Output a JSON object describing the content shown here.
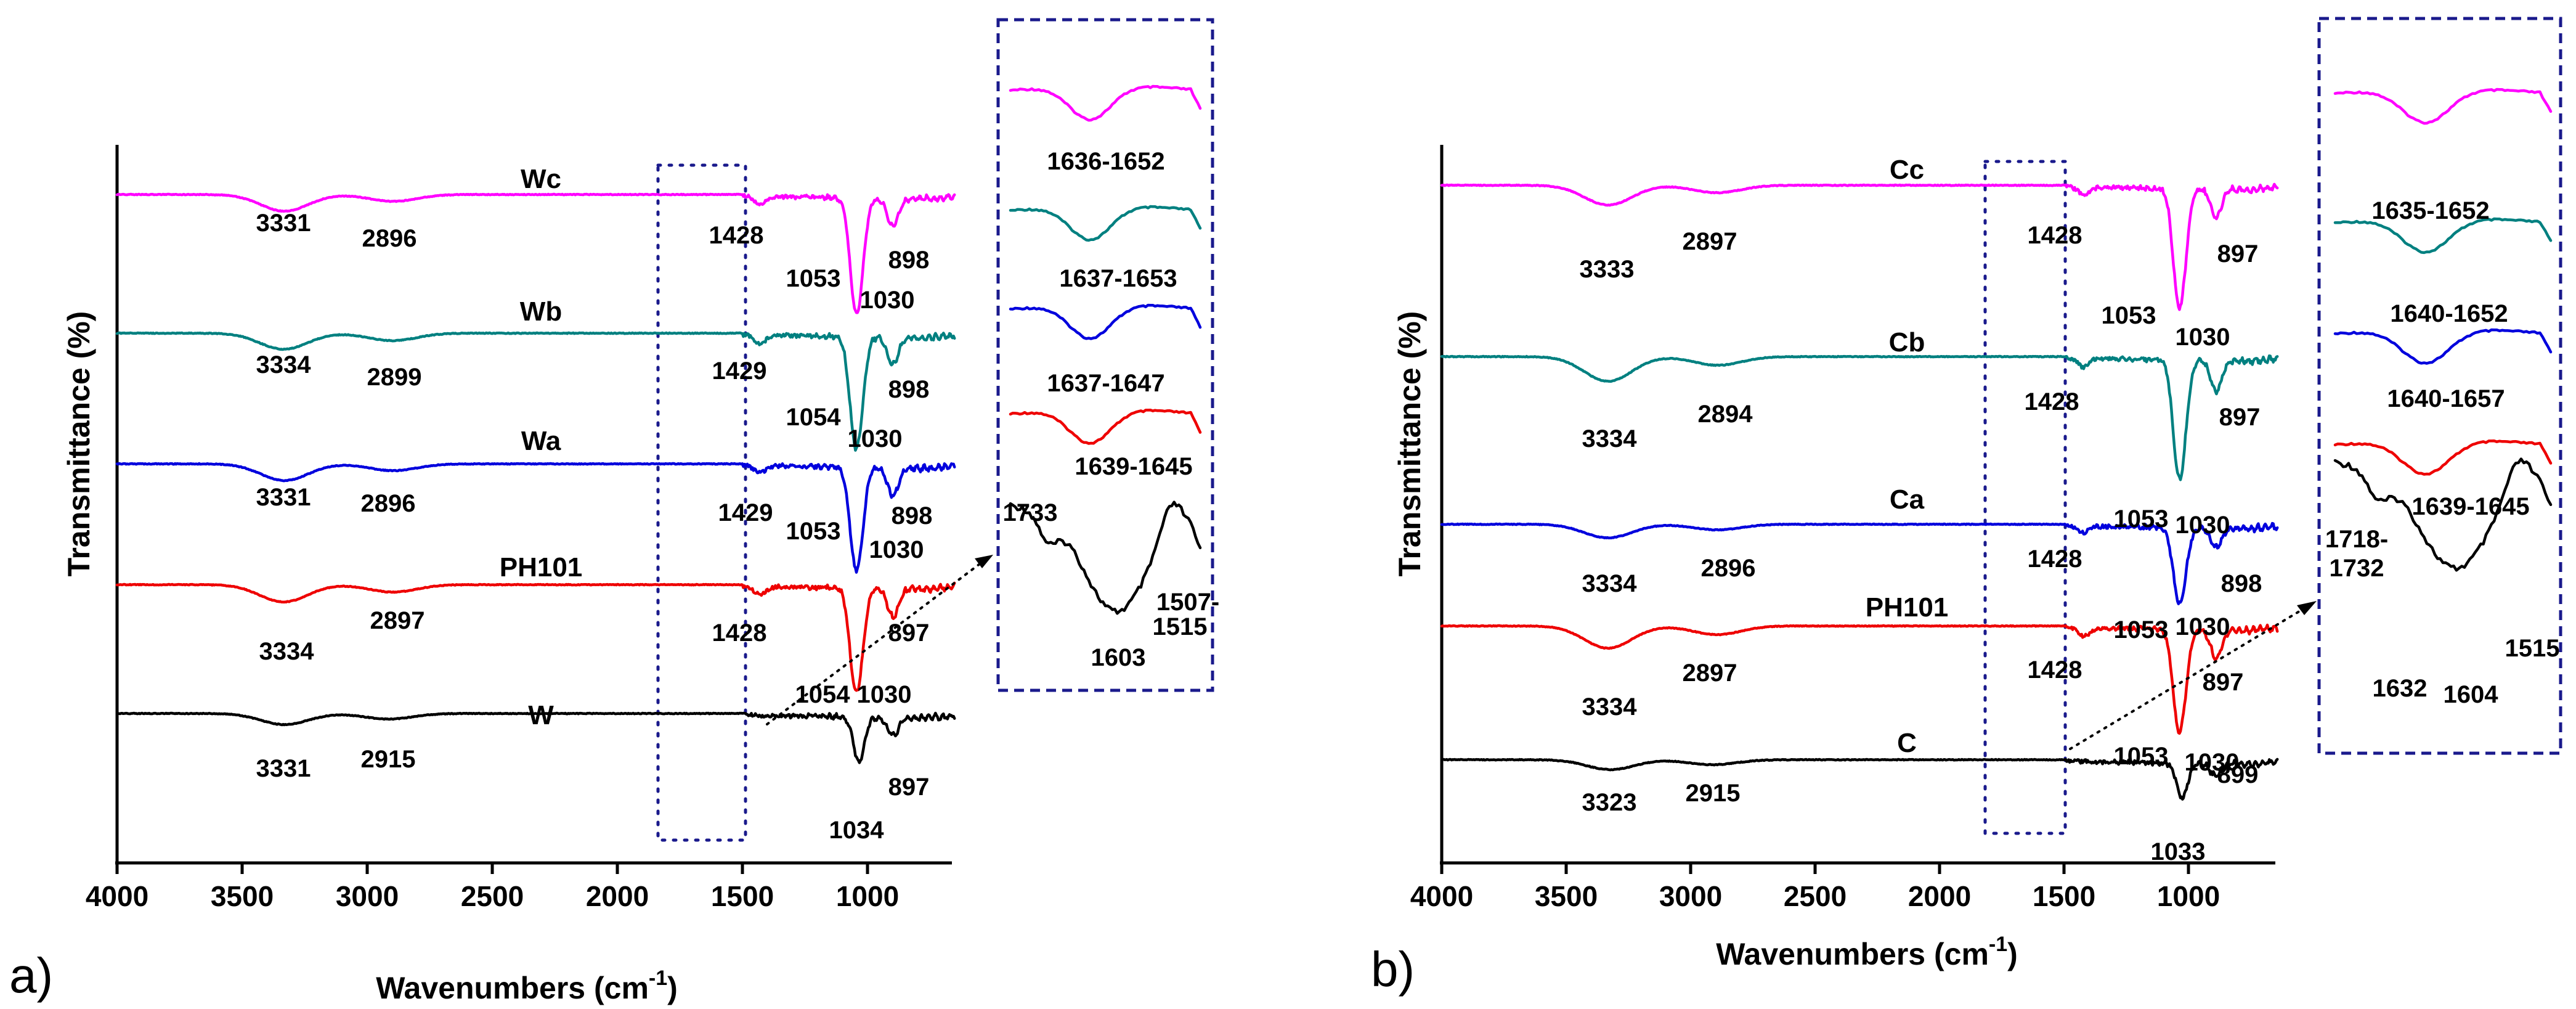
{
  "chart_data": [
    {
      "type": "line",
      "panel": "a)",
      "xlabel": "Wavenumbers (cm",
      "xlabel_sup": "-1",
      "xlabel_end": ")",
      "ylabel": "Transmittance (%)",
      "xlim": [
        4000,
        650
      ],
      "x_reversed": true,
      "x_ticks": [
        "4000",
        "3500",
        "3000",
        "2500",
        "2000",
        "1500",
        "1000"
      ],
      "highlight_region": [
        1820,
        1470
      ],
      "series": [
        {
          "name": "Wc",
          "color": "#ff00ff",
          "peaks": [
            {
              "x": 3331,
              "depth": 27
            },
            {
              "x": 2896,
              "depth": 11
            },
            {
              "x": 1428,
              "depth": 12
            },
            {
              "x": 1053,
              "depth": 120
            },
            {
              "x": 1030,
              "depth": 95
            },
            {
              "x": 898,
              "depth": 45
            }
          ],
          "labels": [
            "3331",
            "2896",
            "1428",
            "1053",
            "1030",
            "898"
          ]
        },
        {
          "name": "Wb",
          "color": "#008080",
          "peaks": [
            {
              "x": 3334,
              "depth": 26
            },
            {
              "x": 2899,
              "depth": 12
            },
            {
              "x": 1429,
              "depth": 14
            },
            {
              "x": 1054,
              "depth": 120
            },
            {
              "x": 1030,
              "depth": 90
            },
            {
              "x": 898,
              "depth": 45
            }
          ],
          "labels": [
            "3334",
            "2899",
            "1429",
            "1054",
            "1030",
            "898"
          ]
        },
        {
          "name": "Wa",
          "color": "#0000dd",
          "peaks": [
            {
              "x": 3331,
              "depth": 27
            },
            {
              "x": 2896,
              "depth": 11
            },
            {
              "x": 1429,
              "depth": 12
            },
            {
              "x": 1053,
              "depth": 110
            },
            {
              "x": 1030,
              "depth": 80
            },
            {
              "x": 898,
              "depth": 45
            }
          ],
          "labels": [
            "3331",
            "2896",
            "1429",
            "1053",
            "1030",
            "898"
          ]
        },
        {
          "name": "PH101",
          "color": "#ee0000",
          "peaks": [
            {
              "x": 3334,
              "depth": 28
            },
            {
              "x": 2897,
              "depth": 12
            },
            {
              "x": 1428,
              "depth": 14
            },
            {
              "x": 1054,
              "depth": 110
            },
            {
              "x": 1030,
              "depth": 85
            },
            {
              "x": 897,
              "depth": 45
            }
          ],
          "labels": [
            "3334",
            "2897",
            "1428",
            "1054",
            "1030",
            "897"
          ]
        },
        {
          "name": "W",
          "color": "#000000",
          "peaks": [
            {
              "x": 3331,
              "depth": 18
            },
            {
              "x": 2915,
              "depth": 9
            },
            {
              "x": 1034,
              "depth": 72
            },
            {
              "x": 897,
              "depth": 28
            }
          ],
          "labels": [
            "3331",
            "2915",
            "1034",
            "897"
          ]
        }
      ],
      "inset": {
        "series": [
          {
            "name": "Wc",
            "color": "#ff00ff",
            "labels": [
              "1636-1652"
            ]
          },
          {
            "name": "Wb",
            "color": "#008080",
            "labels": [
              "1637-1653"
            ]
          },
          {
            "name": "Wa",
            "color": "#0000dd",
            "labels": [
              "1637-1647"
            ]
          },
          {
            "name": "PH101",
            "color": "#ee0000",
            "labels": [
              "1639-1645"
            ]
          },
          {
            "name": "W",
            "color": "#000000",
            "labels": [
              "1733",
              "1603",
              "1507-",
              "1515"
            ]
          }
        ]
      }
    },
    {
      "type": "line",
      "panel": "b)",
      "xlabel": "Wavenumbers (cm",
      "xlabel_sup": "-1",
      "xlabel_end": ")",
      "ylabel": "Transmittance (%)",
      "xlim": [
        4000,
        650
      ],
      "x_reversed": true,
      "x_ticks": [
        "4000",
        "3500",
        "3000",
        "2500",
        "2000",
        "1500",
        "1000"
      ],
      "highlight_region": [
        1800,
        1480
      ],
      "series": [
        {
          "name": "Cc",
          "color": "#ff00ff",
          "peaks": [
            {
              "x": 3333,
              "depth": 32
            },
            {
              "x": 2897,
              "depth": 12
            },
            {
              "x": 1428,
              "depth": 12
            },
            {
              "x": 1053,
              "depth": 125
            },
            {
              "x": 1030,
              "depth": 95
            },
            {
              "x": 897,
              "depth": 45
            }
          ],
          "labels": [
            "3333",
            "2897",
            "1428",
            "1053",
            "1030",
            "897"
          ]
        },
        {
          "name": "Cb",
          "color": "#008080",
          "peaks": [
            {
              "x": 3334,
              "depth": 40
            },
            {
              "x": 2894,
              "depth": 14
            },
            {
              "x": 1428,
              "depth": 14
            },
            {
              "x": 1053,
              "depth": 125
            },
            {
              "x": 1030,
              "depth": 95
            },
            {
              "x": 897,
              "depth": 50
            }
          ],
          "labels": [
            "3334",
            "2894",
            "1428",
            "1053",
            "1030",
            "897"
          ]
        },
        {
          "name": "Ca",
          "color": "#0000dd",
          "peaks": [
            {
              "x": 3334,
              "depth": 22
            },
            {
              "x": 2896,
              "depth": 9
            },
            {
              "x": 1428,
              "depth": 10
            },
            {
              "x": 1053,
              "depth": 80
            },
            {
              "x": 1030,
              "depth": 60
            },
            {
              "x": 898,
              "depth": 30
            }
          ],
          "labels": [
            "3334",
            "2896",
            "1428",
            "1053",
            "1030",
            "898"
          ]
        },
        {
          "name": "PH101",
          "color": "#ee0000",
          "peaks": [
            {
              "x": 3334,
              "depth": 36
            },
            {
              "x": 2897,
              "depth": 14
            },
            {
              "x": 1428,
              "depth": 14
            },
            {
              "x": 1053,
              "depth": 110
            },
            {
              "x": 1030,
              "depth": 80
            },
            {
              "x": 897,
              "depth": 45
            }
          ],
          "labels": [
            "3334",
            "2897",
            "1428",
            "1053",
            "1030",
            "897"
          ]
        },
        {
          "name": "C",
          "color": "#000000",
          "peaks": [
            {
              "x": 3323,
              "depth": 16
            },
            {
              "x": 2915,
              "depth": 8
            },
            {
              "x": 1033,
              "depth": 55
            },
            {
              "x": 899,
              "depth": 20
            }
          ],
          "labels": [
            "3323",
            "2915",
            "1033",
            "899"
          ]
        }
      ],
      "inset": {
        "series": [
          {
            "name": "Cc",
            "color": "#ff00ff",
            "labels": [
              "1635-1652"
            ]
          },
          {
            "name": "Cb",
            "color": "#008080",
            "labels": [
              "1640-1652"
            ]
          },
          {
            "name": "Ca",
            "color": "#0000dd",
            "labels": [
              "1640-1657"
            ]
          },
          {
            "name": "PH101",
            "color": "#ee0000",
            "labels": [
              "1639-1645"
            ]
          },
          {
            "name": "C",
            "color": "#000000",
            "labels": [
              "1718-",
              "1732",
              "1632",
              "1604",
              "1515"
            ]
          }
        ]
      }
    }
  ]
}
